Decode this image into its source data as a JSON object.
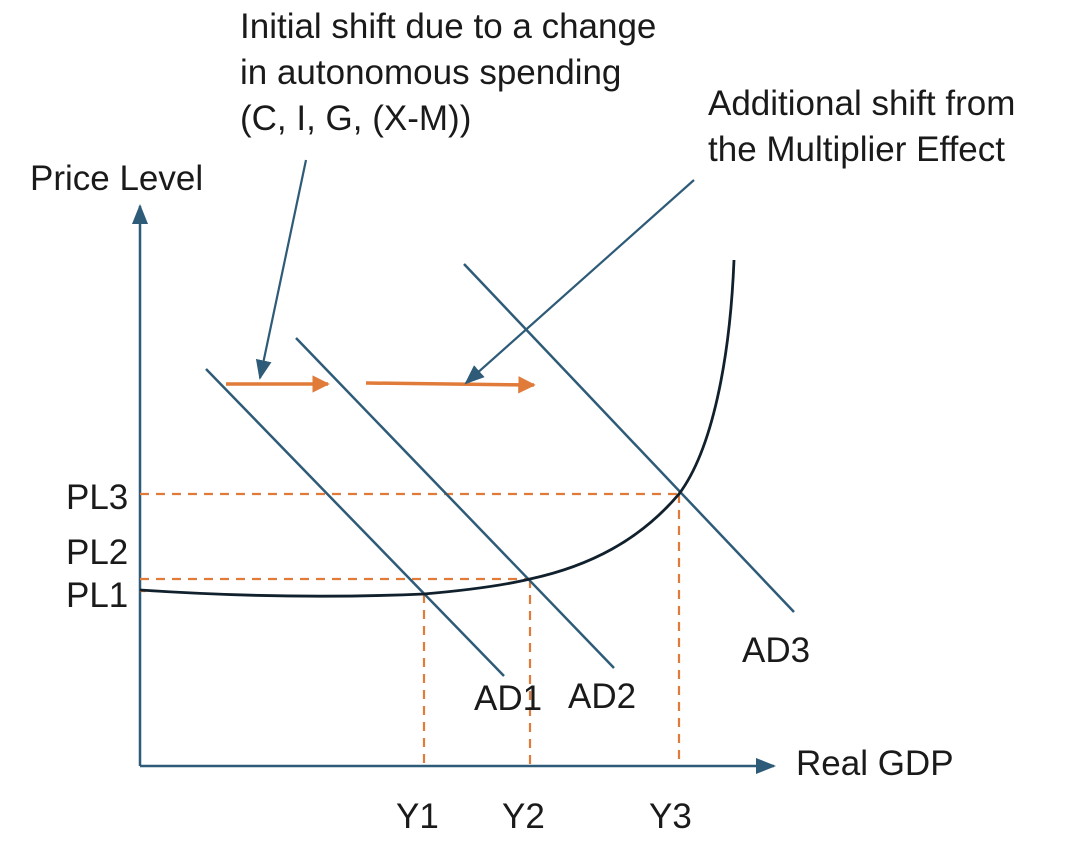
{
  "axes": {
    "y_label": "Price Level",
    "x_label": "Real GDP"
  },
  "price_levels": [
    "PL3",
    "PL2",
    "PL1"
  ],
  "outputs": [
    "Y1",
    "Y2",
    "Y3"
  ],
  "curves": {
    "ad1": "AD1",
    "ad2": "AD2",
    "ad3": "AD3"
  },
  "annotations": {
    "initial_shift": [
      "Initial shift due to a change",
      "in autonomous spending",
      "(C, I, G, (X-M))"
    ],
    "multiplier_shift": [
      "Additional shift from",
      "the Multiplier Effect"
    ]
  },
  "colors": {
    "ad_lines": "#2e5b78",
    "as_curve": "#10202c",
    "guides": "#e07b39",
    "shift_arrows": "#e07b39",
    "axes": "#2e5b78"
  }
}
